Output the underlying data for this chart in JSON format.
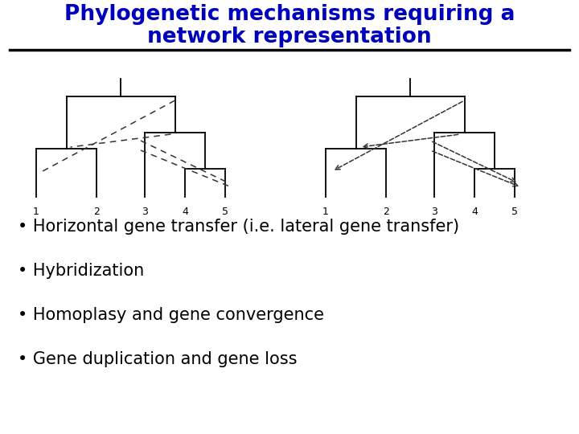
{
  "title_line1": "Phylogenetic mechanisms requiring a",
  "title_line2": "network representation",
  "title_color": "#0000BB",
  "title_fontsize": 19,
  "bg_color": "#FFFFFF",
  "bullet_items": [
    "• Horizontal gene transfer (i.e. lateral gene transfer)",
    "• Hybridization",
    "• Homoplasy and gene convergence",
    "• Gene duplication and gene loss"
  ],
  "bullet_fontsize": 15,
  "bullet_color": "#000000",
  "divider_color": "#000000",
  "tree_color": "#000000",
  "dashed_color": "#333333",
  "lw_tree": 1.3,
  "lw_dash": 1.1
}
